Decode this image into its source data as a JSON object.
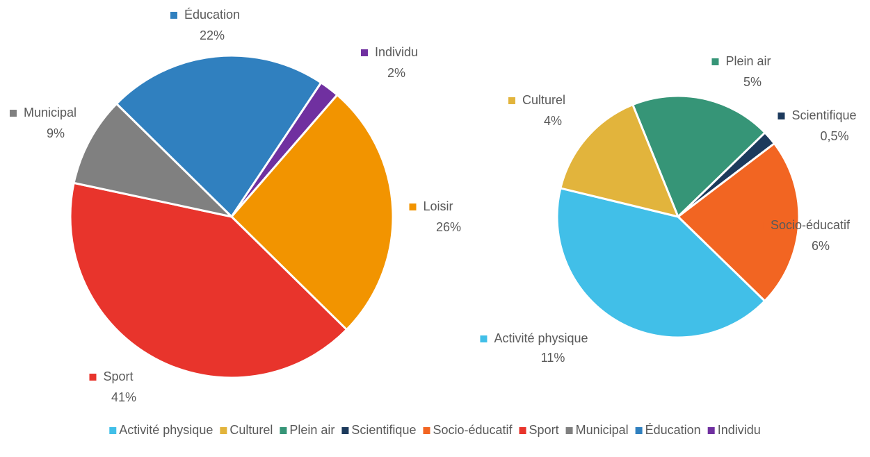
{
  "chart_data": [
    {
      "type": "pie",
      "categories": [
        "Éducation",
        "Individu",
        "Loisir",
        "Sport",
        "Municipal"
      ],
      "values": [
        22,
        2,
        26,
        41,
        9
      ],
      "value_labels": [
        "22%",
        "2%",
        "26%",
        "41%",
        "9%"
      ],
      "colors": [
        "#3080bf",
        "#7030a0",
        "#f29400",
        "#e8342c",
        "#808080"
      ]
    },
    {
      "type": "pie",
      "categories": [
        "Plein air",
        "Scientifique",
        "Socio-éducatif",
        "Activité physique",
        "Culturel"
      ],
      "values": [
        5,
        0.5,
        6,
        11,
        4
      ],
      "value_labels": [
        "5%",
        "0,5%",
        "6%",
        "11%",
        "4%"
      ],
      "colors": [
        "#369577",
        "#1c3a5c",
        "#f26522",
        "#41bfe8",
        "#e2b43c"
      ]
    }
  ],
  "legend": {
    "items": [
      "Activité physique",
      "Culturel",
      "Plein air",
      "Scientifique",
      "Socio-éducatif",
      "Sport",
      "Municipal",
      "Éducation",
      "Individu"
    ],
    "colors": [
      "#41bfe8",
      "#e2b43c",
      "#369577",
      "#1c3a5c",
      "#f26522",
      "#e8342c",
      "#808080",
      "#3080bf",
      "#7030a0"
    ]
  }
}
